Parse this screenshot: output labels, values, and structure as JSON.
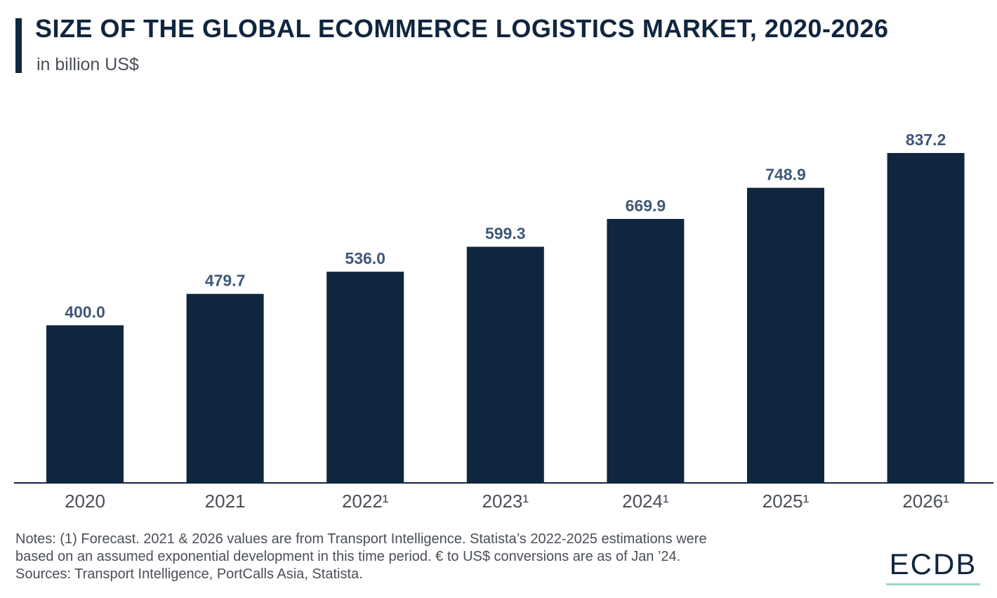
{
  "header": {
    "title": "SIZE OF THE GLOBAL ECOMMERCE LOGISTICS MARKET, 2020-2026",
    "subtitle": "in billion US$"
  },
  "chart_data": {
    "type": "bar",
    "title": "SIZE OF THE GLOBAL ECOMMERCE LOGISTICS MARKET, 2020-2026",
    "subtitle": "in billion US$",
    "categories": [
      "2020",
      "2021",
      "2022¹",
      "2023¹",
      "2024¹",
      "2025¹",
      "2026¹"
    ],
    "values": [
      400.0,
      479.7,
      536.0,
      599.3,
      669.9,
      748.9,
      837.2
    ],
    "value_labels": [
      "400.0",
      "479.7",
      "536.0",
      "599.3",
      "669.9",
      "748.9",
      "837.2"
    ],
    "xlabel": "",
    "ylabel": "",
    "ylim": [
      0,
      837.2
    ],
    "grid": false,
    "legend": "none"
  },
  "colors": {
    "bar": "#10263f",
    "value_label": "#3f5878",
    "tick_label": "#4a4f57",
    "axis": "#10263f"
  },
  "footer": {
    "notes": [
      "Notes: (1) Forecast. 2021 & 2026 values are from Transport Intelligence. Statista’s 2022-2025 estimations were",
      "based on an assumed exponential development in this time period. € to US$ conversions are as of Jan ’24.",
      "Sources: Transport Intelligence, PortCalls Asia, Statista."
    ],
    "logo_text": "ECDB"
  }
}
